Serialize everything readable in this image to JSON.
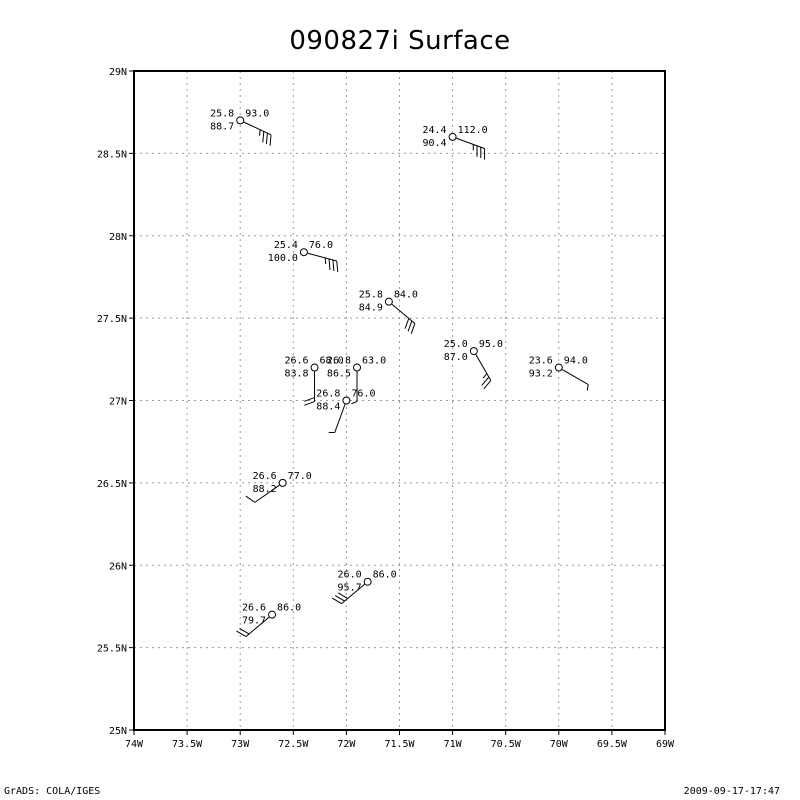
{
  "title": "090827i Surface",
  "footer": {
    "left": "GrADS: COLA/IGES",
    "right": "2009-09-17-17:47"
  },
  "map": {
    "lon_range": [
      -74,
      -69
    ],
    "lat_range": [
      25,
      29
    ],
    "grid": true,
    "x_ticks": [
      {
        "lon": -74,
        "label": "74W"
      },
      {
        "lon": -73.5,
        "label": "73.5W"
      },
      {
        "lon": -73,
        "label": "73W"
      },
      {
        "lon": -72.5,
        "label": "72.5W"
      },
      {
        "lon": -72,
        "label": "72W"
      },
      {
        "lon": -71.5,
        "label": "71.5W"
      },
      {
        "lon": -71,
        "label": "71W"
      },
      {
        "lon": -70.5,
        "label": "70.5W"
      },
      {
        "lon": -70,
        "label": "70W"
      },
      {
        "lon": -69.5,
        "label": "69.5W"
      },
      {
        "lon": -69,
        "label": "69W"
      }
    ],
    "y_ticks": [
      {
        "lat": 25,
        "label": "25N"
      },
      {
        "lat": 25.5,
        "label": "25.5N"
      },
      {
        "lat": 26,
        "label": "26N"
      },
      {
        "lat": 26.5,
        "label": "26.5N"
      },
      {
        "lat": 27,
        "label": "27N"
      },
      {
        "lat": 27.5,
        "label": "27.5N"
      },
      {
        "lat": 28,
        "label": "28N"
      },
      {
        "lat": 28.5,
        "label": "28.5N"
      },
      {
        "lat": 29,
        "label": "29N"
      }
    ],
    "stations": [
      {
        "lon": -73.0,
        "lat": 28.7,
        "temp": "25.8",
        "rh": "88.7",
        "dir": "93.0",
        "dir_deg": 115,
        "barbs": 3.5
      },
      {
        "lon": -71.0,
        "lat": 28.6,
        "temp": "24.4",
        "rh": "90.4",
        "dir": "112.0",
        "dir_deg": 110,
        "barbs": 3.5
      },
      {
        "lon": -72.4,
        "lat": 27.9,
        "temp": "25.4",
        "rh": "100.0",
        "dir": "76.0",
        "dir_deg": 105,
        "barbs": 3.5
      },
      {
        "lon": -71.6,
        "lat": 27.6,
        "temp": "25.8",
        "rh": "84.9",
        "dir": "84.0",
        "dir_deg": 130,
        "barbs": 3
      },
      {
        "lon": -70.8,
        "lat": 27.3,
        "temp": "25.0",
        "rh": "87.0",
        "dir": "95.0",
        "dir_deg": 150,
        "barbs": 2.5
      },
      {
        "lon": -70.0,
        "lat": 27.2,
        "temp": "23.6",
        "rh": "93.2",
        "dir": "94.0",
        "dir_deg": 120,
        "barbs": 0.5
      },
      {
        "lon": -72.3,
        "lat": 27.2,
        "temp": "26.6",
        "rh": "83.8",
        "dir": "68.0",
        "dir_deg": 180,
        "barbs": 2
      },
      {
        "lon": -71.9,
        "lat": 27.2,
        "temp": "26.8",
        "rh": "86.5",
        "dir": "63.0",
        "dir_deg": 180,
        "barbs": 0.5
      },
      {
        "lon": -72.0,
        "lat": 27.0,
        "temp": "26.8",
        "rh": "88.4",
        "dir": "76.0",
        "dir_deg": 200,
        "barbs": 0.5
      },
      {
        "lon": -72.6,
        "lat": 26.5,
        "temp": "26.6",
        "rh": "88.2",
        "dir": "77.0",
        "dir_deg": 235,
        "barbs": 1
      },
      {
        "lon": -71.8,
        "lat": 25.9,
        "temp": "26.0",
        "rh": "95.7",
        "dir": "86.0",
        "dir_deg": 230,
        "barbs": 3
      },
      {
        "lon": -72.7,
        "lat": 25.7,
        "temp": "26.6",
        "rh": "79.7",
        "dir": "86.0",
        "dir_deg": 230,
        "barbs": 2
      }
    ]
  }
}
